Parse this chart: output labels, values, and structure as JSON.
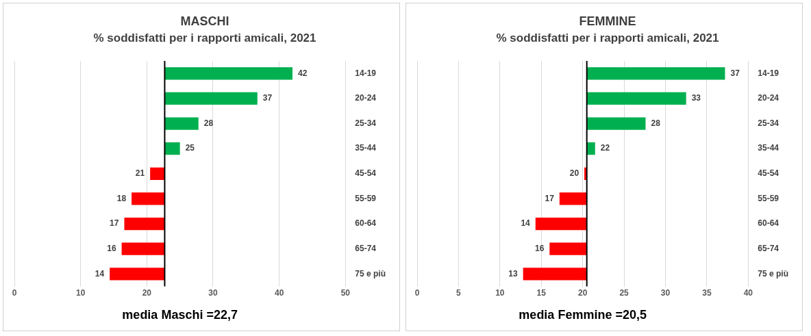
{
  "chart_data": [
    {
      "type": "bar",
      "orientation": "horizontal",
      "title": "MASCHI",
      "subtitle": "% soddisfatti per i rapporti amicali, 2021",
      "categories": [
        "14-19",
        "20-24",
        "25-34",
        "35-44",
        "45-54",
        "55-59",
        "60-64",
        "65-74",
        "75 e più"
      ],
      "base": [
        22.7,
        22.7,
        22.7,
        22.7,
        22.7,
        22.7,
        22.7,
        22.7,
        22.7
      ],
      "values": [
        19.3,
        14,
        5.1,
        2.3,
        -2.2,
        -5,
        -6.1,
        -6.5,
        -8.3
      ],
      "colors": [
        "#00b050",
        "#00b050",
        "#00b050",
        "#00b050",
        "#ff0000",
        "#ff0000",
        "#ff0000",
        "#ff0000",
        "#ff0000"
      ],
      "value_labels": [
        "42",
        "37",
        "28",
        "25",
        "21",
        "18",
        "17",
        "16",
        "14"
      ],
      "xlim": [
        0,
        50
      ],
      "xticks": [
        0,
        10,
        20,
        30,
        40,
        50
      ],
      "grid": "x",
      "ref_lines": [
        {
          "axis": "x",
          "value": 22.7,
          "label": "media Maschi =22,7",
          "color": "#000000"
        }
      ]
    },
    {
      "type": "bar",
      "orientation": "horizontal",
      "title": "FEMMINE",
      "subtitle": "% soddisfatti per i rapporti amicali, 2021",
      "categories": [
        "14-19",
        "20-24",
        "25-34",
        "35-44",
        "45-54",
        "55-59",
        "60-64",
        "65-74",
        "75 e più"
      ],
      "base": [
        20.5,
        20.5,
        20.5,
        20.5,
        20.5,
        20.5,
        20.5,
        20.5,
        20.5
      ],
      "values": [
        16.7,
        12,
        7.1,
        1,
        -0.3,
        -3.3,
        -6.2,
        -4.5,
        -7.7
      ],
      "colors": [
        "#00b050",
        "#00b050",
        "#00b050",
        "#00b050",
        "#ff0000",
        "#ff0000",
        "#ff0000",
        "#ff0000",
        "#ff0000"
      ],
      "value_labels": [
        "37",
        "33",
        "28",
        "22",
        "20",
        "17",
        "14",
        "16",
        "13"
      ],
      "xlim": [
        0,
        40
      ],
      "xticks": [
        0,
        5,
        10,
        15,
        20,
        25,
        30,
        35,
        40
      ],
      "grid": "x",
      "ref_lines": [
        {
          "axis": "x",
          "value": 20.5,
          "label": "media Femmine =20,5",
          "color": "#000000"
        }
      ]
    }
  ]
}
